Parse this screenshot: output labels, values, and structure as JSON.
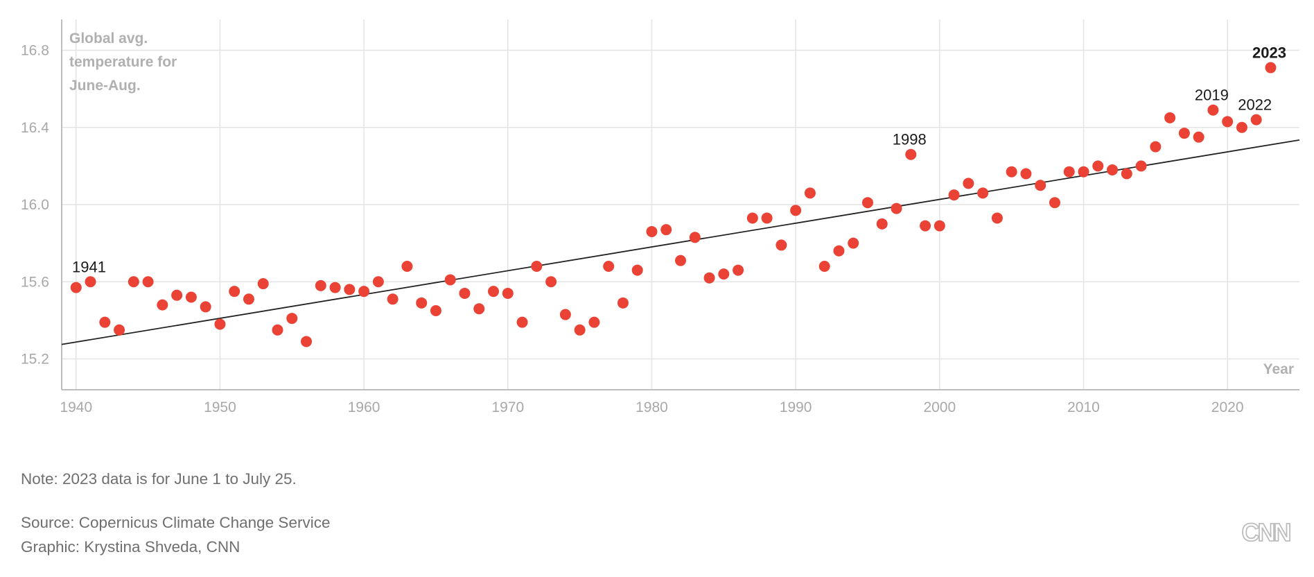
{
  "chart_data": {
    "type": "scatter",
    "ylabel_lines": [
      "Global avg.",
      "temperature for",
      "June-Aug."
    ],
    "xlabel": "Year",
    "xlim": [
      1939,
      2025
    ],
    "ylim": [
      15.04,
      16.96
    ],
    "x_ticks": [
      1940,
      1950,
      1960,
      1970,
      1980,
      1990,
      2000,
      2010,
      2020
    ],
    "y_ticks": [
      15.2,
      15.6,
      16.0,
      16.4,
      16.8
    ],
    "y_tick_labels": [
      "15.2",
      "15.6",
      "16.0",
      "16.4",
      "16.8"
    ],
    "grid": true,
    "point_color": "#ea4335",
    "x": [
      1940,
      1941,
      1942,
      1943,
      1944,
      1945,
      1946,
      1947,
      1948,
      1949,
      1950,
      1951,
      1952,
      1953,
      1954,
      1955,
      1956,
      1957,
      1958,
      1959,
      1960,
      1961,
      1962,
      1963,
      1964,
      1965,
      1966,
      1967,
      1968,
      1969,
      1970,
      1971,
      1972,
      1973,
      1974,
      1975,
      1976,
      1977,
      1978,
      1979,
      1980,
      1981,
      1982,
      1983,
      1984,
      1985,
      1986,
      1987,
      1988,
      1989,
      1990,
      1991,
      1992,
      1993,
      1994,
      1995,
      1996,
      1997,
      1998,
      1999,
      2000,
      2001,
      2002,
      2003,
      2004,
      2005,
      2006,
      2007,
      2008,
      2009,
      2010,
      2011,
      2012,
      2013,
      2014,
      2015,
      2016,
      2017,
      2018,
      2019,
      2020,
      2021,
      2022,
      2023
    ],
    "y": [
      15.57,
      15.6,
      15.39,
      15.35,
      15.6,
      15.6,
      15.48,
      15.53,
      15.52,
      15.47,
      15.38,
      15.55,
      15.51,
      15.59,
      15.35,
      15.41,
      15.29,
      15.58,
      15.57,
      15.56,
      15.55,
      15.6,
      15.51,
      15.68,
      15.49,
      15.45,
      15.61,
      15.54,
      15.46,
      15.55,
      15.54,
      15.39,
      15.68,
      15.6,
      15.43,
      15.35,
      15.39,
      15.68,
      15.49,
      15.66,
      15.86,
      15.87,
      15.71,
      15.83,
      15.62,
      15.64,
      15.66,
      15.93,
      15.93,
      15.79,
      15.97,
      16.06,
      15.68,
      15.76,
      15.8,
      16.01,
      15.9,
      15.98,
      16.26,
      15.89,
      15.89,
      16.05,
      16.11,
      16.06,
      15.93,
      16.17,
      16.16,
      16.1,
      16.01,
      16.17,
      16.17,
      16.2,
      16.18,
      16.16,
      16.2,
      16.3,
      16.45,
      16.37,
      16.35,
      16.49,
      16.43,
      16.4,
      16.44,
      16.71
    ],
    "trend_line": {
      "x": [
        1939,
        2025
      ],
      "y": [
        15.275,
        16.335
      ]
    },
    "annotations": [
      {
        "year": 1941,
        "label": "1941",
        "bold": false
      },
      {
        "year": 1998,
        "label": "1998",
        "bold": false
      },
      {
        "year": 2019,
        "label": "2019",
        "bold": false
      },
      {
        "year": 2022,
        "label": "2022",
        "bold": false
      },
      {
        "year": 2023,
        "label": "2023",
        "bold": true
      }
    ]
  },
  "footer": {
    "note": "Note: 2023 data is for June 1 to July 25.",
    "source": "Source: Copernicus Climate Change Service",
    "graphic": "Graphic: Krystina Shveda, CNN"
  },
  "logo": {
    "text": "CNN",
    "color": "#bdbdbd",
    "icon": "cnn-logo"
  }
}
